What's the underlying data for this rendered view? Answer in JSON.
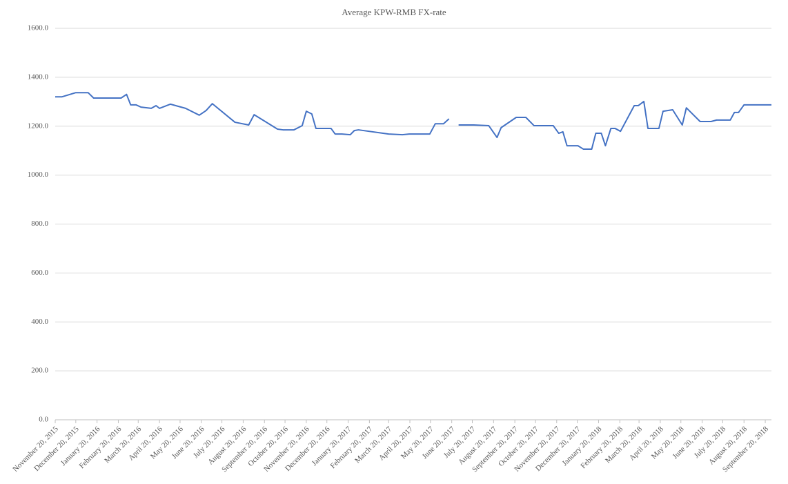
{
  "chart_data": {
    "type": "line",
    "title": "Average KPW-RMB  FX-rate",
    "x": [
      "2015-11-20",
      "2015-11-30",
      "2015-12-20",
      "2016-01-07",
      "2016-01-15",
      "2016-02-24",
      "2016-03-03",
      "2016-03-09",
      "2016-03-17",
      "2016-03-24",
      "2016-04-08",
      "2016-04-15",
      "2016-04-20",
      "2016-05-06",
      "2016-05-28",
      "2016-06-17",
      "2016-06-27",
      "2016-07-06",
      "2016-08-08",
      "2016-08-28",
      "2016-09-05",
      "2016-10-09",
      "2016-10-17",
      "2016-11-02",
      "2016-11-14",
      "2016-11-20",
      "2016-11-28",
      "2016-12-04",
      "2016-12-26",
      "2017-01-01",
      "2017-01-11",
      "2017-01-23",
      "2017-01-29",
      "2017-02-04",
      "2017-03-20",
      "2017-04-09",
      "2017-04-19",
      "2017-05-19",
      "2017-05-27",
      "2017-06-08",
      "2017-06-16",
      "2017-06-23",
      "2017-06-30",
      "2017-07-22",
      "2017-08-13",
      "2017-08-25",
      "2017-08-31",
      "2017-09-22",
      "2017-10-06",
      "2017-10-18",
      "2017-11-15",
      "2017-11-23",
      "2017-11-29",
      "2017-12-05",
      "2017-12-21",
      "2017-12-29",
      "2018-01-10",
      "2018-01-16",
      "2018-01-24",
      "2018-01-30",
      "2018-02-07",
      "2018-02-13",
      "2018-02-21",
      "2018-03-13",
      "2018-03-19",
      "2018-03-27",
      "2018-04-02",
      "2018-04-18",
      "2018-04-24",
      "2018-05-08",
      "2018-05-22",
      "2018-05-28",
      "2018-06-17",
      "2018-07-03",
      "2018-07-11",
      "2018-07-31",
      "2018-08-06",
      "2018-08-12",
      "2018-08-20",
      "2018-09-29"
    ],
    "series": [
      {
        "name": "Average KPW-RMB FX-rate",
        "color": "#4472c4",
        "values": [
          1320,
          1320,
          1337,
          1337,
          1315,
          1315,
          1330,
          1287,
          1287,
          1278,
          1273,
          1284,
          1273,
          1290,
          1273,
          1245,
          1264,
          1292,
          1216,
          1205,
          1247,
          1188,
          1185,
          1185,
          1202,
          1261,
          1250,
          1191,
          1191,
          1168,
          1168,
          1165,
          1182,
          1185,
          1168,
          1165,
          1168,
          1168,
          1210,
          1210,
          1230,
          null,
          1205,
          1205,
          1202,
          1154,
          1194,
          1236,
          1236,
          1202,
          1202,
          1171,
          1177,
          1120,
          1120,
          1106,
          1106,
          1171,
          1171,
          1120,
          1191,
          1191,
          1179,
          1284,
          1284,
          1301,
          1191,
          1191,
          1261,
          1267,
          1205,
          1275,
          1219,
          1219,
          1225,
          1225,
          1256,
          1256,
          1287,
          1287
        ]
      }
    ],
    "xlim": [
      "2015-11-20",
      "2018-09-29"
    ],
    "xticks": [
      {
        "value": "2015-11-20",
        "label": "November 20, 2015"
      },
      {
        "value": "2015-12-20",
        "label": "December 20, 2015"
      },
      {
        "value": "2016-01-20",
        "label": "January 20, 2016"
      },
      {
        "value": "2016-02-20",
        "label": "February 20, 2016"
      },
      {
        "value": "2016-03-20",
        "label": "March 20, 2016"
      },
      {
        "value": "2016-04-20",
        "label": "April 20, 2016"
      },
      {
        "value": "2016-05-20",
        "label": "May 20, 2016"
      },
      {
        "value": "2016-06-20",
        "label": "June 20, 2016"
      },
      {
        "value": "2016-07-20",
        "label": "July 20, 2016"
      },
      {
        "value": "2016-08-20",
        "label": "August 20, 2016"
      },
      {
        "value": "2016-09-20",
        "label": "September 20, 2016"
      },
      {
        "value": "2016-10-20",
        "label": "October 20, 2016"
      },
      {
        "value": "2016-11-20",
        "label": "November 20, 2016"
      },
      {
        "value": "2016-12-20",
        "label": "December 20, 2016"
      },
      {
        "value": "2017-01-20",
        "label": "January 20, 2017"
      },
      {
        "value": "2017-02-20",
        "label": "February 20, 2017"
      },
      {
        "value": "2017-03-20",
        "label": "March 20, 2017"
      },
      {
        "value": "2017-04-20",
        "label": "April 20, 2017"
      },
      {
        "value": "2017-05-20",
        "label": "May 20, 2017"
      },
      {
        "value": "2017-06-20",
        "label": "June 20, 2017"
      },
      {
        "value": "2017-07-20",
        "label": "July 20, 2017"
      },
      {
        "value": "2017-08-20",
        "label": "August 20, 2017"
      },
      {
        "value": "2017-09-20",
        "label": "September 20, 2017"
      },
      {
        "value": "2017-10-20",
        "label": "October 20, 2017"
      },
      {
        "value": "2017-11-20",
        "label": "November 20, 2017"
      },
      {
        "value": "2017-12-20",
        "label": "December 20, 2017"
      },
      {
        "value": "2018-01-20",
        "label": "January 20, 2018"
      },
      {
        "value": "2018-02-20",
        "label": "February 20, 2018"
      },
      {
        "value": "2018-03-20",
        "label": "March 20, 2018"
      },
      {
        "value": "2018-04-20",
        "label": "April 20, 2018"
      },
      {
        "value": "2018-05-20",
        "label": "May 20, 2018"
      },
      {
        "value": "2018-06-20",
        "label": "June 20, 2018"
      },
      {
        "value": "2018-07-20",
        "label": "July 20, 2018"
      },
      {
        "value": "2018-08-20",
        "label": "August 20, 2018"
      },
      {
        "value": "2018-09-20",
        "label": "September 20, 2018"
      }
    ],
    "ylim": [
      0,
      1600
    ],
    "yticks": [
      {
        "value": 0,
        "label": "0.0"
      },
      {
        "value": 200,
        "label": "200.0"
      },
      {
        "value": 400,
        "label": "400.0"
      },
      {
        "value": 600,
        "label": "600.0"
      },
      {
        "value": 800,
        "label": "800.0"
      },
      {
        "value": 1000,
        "label": "1000.0"
      },
      {
        "value": 1200,
        "label": "1200.0"
      },
      {
        "value": 1400,
        "label": "1400.0"
      },
      {
        "value": 1600,
        "label": "1600.0"
      }
    ],
    "grid": true
  }
}
